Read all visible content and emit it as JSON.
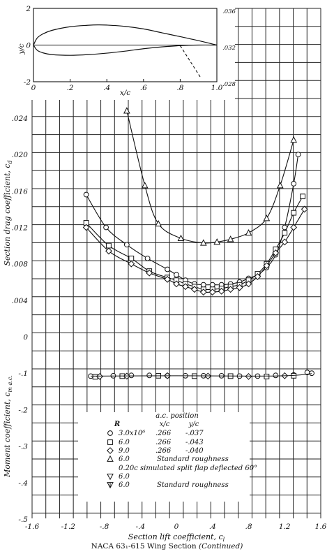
{
  "caption": {
    "text": "NACA 63₁-615 Wing Section",
    "suffix": "(Continued)"
  },
  "chart_data": [
    {
      "type": "line",
      "name": "airfoil-profile",
      "xlabel": "x/c",
      "ylabel": "y/c",
      "xlim": [
        0,
        1.0
      ],
      "ylim": [
        -2,
        2
      ],
      "x_ticks": [
        "0",
        ".2",
        ".4",
        ".6",
        ".8",
        "1.0"
      ],
      "y_ticks": [
        "2",
        "0",
        "-2"
      ],
      "right_ticks": [
        ".036",
        ".032",
        ".028"
      ],
      "upper_surface": [
        [
          0,
          0
        ],
        [
          0.02,
          0.38
        ],
        [
          0.05,
          0.6
        ],
        [
          0.1,
          0.8
        ],
        [
          0.2,
          1.0
        ],
        [
          0.3,
          1.08
        ],
        [
          0.35,
          1.1
        ],
        [
          0.4,
          1.09
        ],
        [
          0.5,
          1.02
        ],
        [
          0.6,
          0.88
        ],
        [
          0.7,
          0.67
        ],
        [
          0.8,
          0.46
        ],
        [
          0.9,
          0.24
        ],
        [
          1.0,
          0
        ]
      ],
      "lower_surface": [
        [
          0,
          0
        ],
        [
          0.02,
          -0.28
        ],
        [
          0.05,
          -0.42
        ],
        [
          0.1,
          -0.52
        ],
        [
          0.2,
          -0.56
        ],
        [
          0.3,
          -0.52
        ],
        [
          0.4,
          -0.44
        ],
        [
          0.5,
          -0.33
        ],
        [
          0.6,
          -0.2
        ],
        [
          0.7,
          -0.1
        ],
        [
          0.8,
          -0.03
        ],
        [
          0.9,
          0.0
        ],
        [
          1.0,
          0
        ]
      ],
      "flap_dashed": [
        [
          0.8,
          -0.03
        ],
        [
          0.91,
          -1.75
        ]
      ]
    },
    {
      "type": "scatter",
      "name": "drag-and-moment",
      "xlabel": "Section lift coefficient, c_l",
      "ylabel_drag": "Section drag coefficient, c_d",
      "ylabel_moment": "Moment coefficient, c_m_a.c.",
      "x_ticks": [
        "-1.6",
        "-1.2",
        "-.8",
        "-.4",
        "0",
        ".4",
        ".8",
        "1.2",
        "1.6"
      ],
      "drag_ticks": [
        ".024",
        ".020",
        ".016",
        ".012",
        ".008",
        ".004",
        "0"
      ],
      "moment_ticks": [
        "-.1",
        "-.2",
        "-.3",
        "-.4",
        "-.5"
      ],
      "xlim": [
        -1.6,
        1.6
      ],
      "drag_ylim": [
        0,
        0.026
      ],
      "moment_ylim": [
        -0.5,
        0
      ],
      "series": [
        {
          "name": "3.0x10⁶",
          "marker": "circle",
          "drag": [
            [
              -1.0,
              0.0156
            ],
            [
              -0.78,
              0.012
            ],
            [
              -0.55,
              0.0101
            ],
            [
              -0.32,
              0.0086
            ],
            [
              -0.1,
              0.0074
            ],
            [
              0.0,
              0.0068
            ],
            [
              0.1,
              0.0062
            ],
            [
              0.2,
              0.0058
            ],
            [
              0.3,
              0.0057
            ],
            [
              0.4,
              0.0057
            ],
            [
              0.5,
              0.0057
            ],
            [
              0.6,
              0.0058
            ],
            [
              0.7,
              0.006
            ],
            [
              0.8,
              0.0064
            ],
            [
              0.9,
              0.0068
            ],
            [
              1.0,
              0.0076
            ],
            [
              1.1,
              0.009
            ],
            [
              1.2,
              0.012
            ],
            [
              1.3,
              0.0168
            ],
            [
              1.35,
              0.02
            ]
          ],
          "moment": [
            [
              -0.95,
              -0.108
            ],
            [
              -0.7,
              -0.107
            ],
            [
              -0.5,
              -0.106
            ],
            [
              -0.3,
              -0.106
            ],
            [
              -0.1,
              -0.107
            ],
            [
              0.1,
              -0.107
            ],
            [
              0.3,
              -0.107
            ],
            [
              0.5,
              -0.107
            ],
            [
              0.7,
              -0.108
            ],
            [
              0.9,
              -0.108
            ],
            [
              1.1,
              -0.106
            ],
            [
              1.3,
              -0.105
            ],
            [
              1.45,
              -0.098
            ],
            [
              1.5,
              -0.1
            ]
          ]
        },
        {
          "name": "6.0",
          "marker": "square",
          "drag": [
            [
              -1.0,
              0.0125
            ],
            [
              -0.75,
              0.01
            ],
            [
              -0.5,
              0.0086
            ],
            [
              -0.3,
              0.0072
            ],
            [
              -0.1,
              0.0065
            ],
            [
              0.0,
              0.0062
            ],
            [
              0.1,
              0.0058
            ],
            [
              0.2,
              0.0055
            ],
            [
              0.3,
              0.0052
            ],
            [
              0.4,
              0.0052
            ],
            [
              0.5,
              0.0053
            ],
            [
              0.6,
              0.0055
            ],
            [
              0.7,
              0.0057
            ],
            [
              0.8,
              0.0062
            ],
            [
              0.9,
              0.0069
            ],
            [
              1.0,
              0.008
            ],
            [
              1.1,
              0.0096
            ],
            [
              1.2,
              0.0114
            ],
            [
              1.3,
              0.0136
            ],
            [
              1.4,
              0.0154
            ]
          ],
          "moment": [
            [
              -0.9,
              -0.11
            ],
            [
              -0.6,
              -0.108
            ],
            [
              -0.2,
              -0.107
            ],
            [
              0.2,
              -0.108
            ],
            [
              0.6,
              -0.108
            ],
            [
              1.0,
              -0.109
            ],
            [
              1.3,
              -0.107
            ]
          ]
        },
        {
          "name": "9.0",
          "marker": "diamond",
          "drag": [
            [
              -1.0,
              0.012
            ],
            [
              -0.75,
              0.0094
            ],
            [
              -0.5,
              0.008
            ],
            [
              -0.3,
              0.007
            ],
            [
              -0.1,
              0.0063
            ],
            [
              0.0,
              0.0058
            ],
            [
              0.1,
              0.0055
            ],
            [
              0.2,
              0.0052
            ],
            [
              0.3,
              0.0049
            ],
            [
              0.4,
              0.0049
            ],
            [
              0.5,
              0.005
            ],
            [
              0.6,
              0.0052
            ],
            [
              0.7,
              0.0054
            ],
            [
              0.8,
              0.0058
            ],
            [
              0.9,
              0.0066
            ],
            [
              1.0,
              0.0078
            ],
            [
              1.1,
              0.0092
            ],
            [
              1.2,
              0.0104
            ],
            [
              1.3,
              0.012
            ],
            [
              1.42,
              0.014
            ]
          ],
          "moment": [
            [
              -0.85,
              -0.109
            ],
            [
              -0.55,
              -0.108
            ],
            [
              -0.1,
              -0.107
            ],
            [
              0.35,
              -0.108
            ],
            [
              0.8,
              -0.109
            ],
            [
              1.2,
              -0.107
            ]
          ]
        },
        {
          "name": "6.0 Standard roughness",
          "marker": "triangle-up",
          "drag": [
            [
              -0.55,
              0.0248
            ],
            [
              -0.35,
              0.0166
            ],
            [
              -0.2,
              0.0124
            ],
            [
              0.05,
              0.0108
            ],
            [
              0.3,
              0.0103
            ],
            [
              0.45,
              0.0104
            ],
            [
              0.6,
              0.0107
            ],
            [
              0.8,
              0.0114
            ],
            [
              1.0,
              0.013
            ],
            [
              1.15,
              0.0166
            ],
            [
              1.3,
              0.0216
            ]
          ],
          "moment": []
        },
        {
          "name": "6.0 0.20c simulated split flap deflected 60°",
          "marker": "triangle-down",
          "drag": [],
          "moment": []
        },
        {
          "name": "6.0 Standard roughness",
          "marker": "triangle-down-half",
          "drag": [],
          "moment": []
        }
      ]
    }
  ],
  "legend": {
    "header_ac": "a.c. position",
    "col_R": "R",
    "col_xc": "x/c",
    "col_yc": "y/c",
    "rows": [
      {
        "marker": "circle",
        "R": "3.0x10⁶",
        "xc": ".266",
        "yc": "-.037"
      },
      {
        "marker": "square",
        "R": "6.0",
        "xc": ".266",
        "yc": "-.043"
      },
      {
        "marker": "diamond",
        "R": "9.0",
        "xc": ".266",
        "yc": "-.040"
      },
      {
        "marker": "triangle-up",
        "R": "6.0",
        "xc": "Standard roughness",
        "yc": ""
      },
      {
        "marker": "none",
        "R": "",
        "xc": "0.20c simulated split flap deflected 60°",
        "yc": ""
      },
      {
        "marker": "triangle-down",
        "R": "6.0",
        "xc": "",
        "yc": ""
      },
      {
        "marker": "triangle-down-half",
        "R": "6.0",
        "xc": "Standard roughness",
        "yc": ""
      }
    ]
  }
}
